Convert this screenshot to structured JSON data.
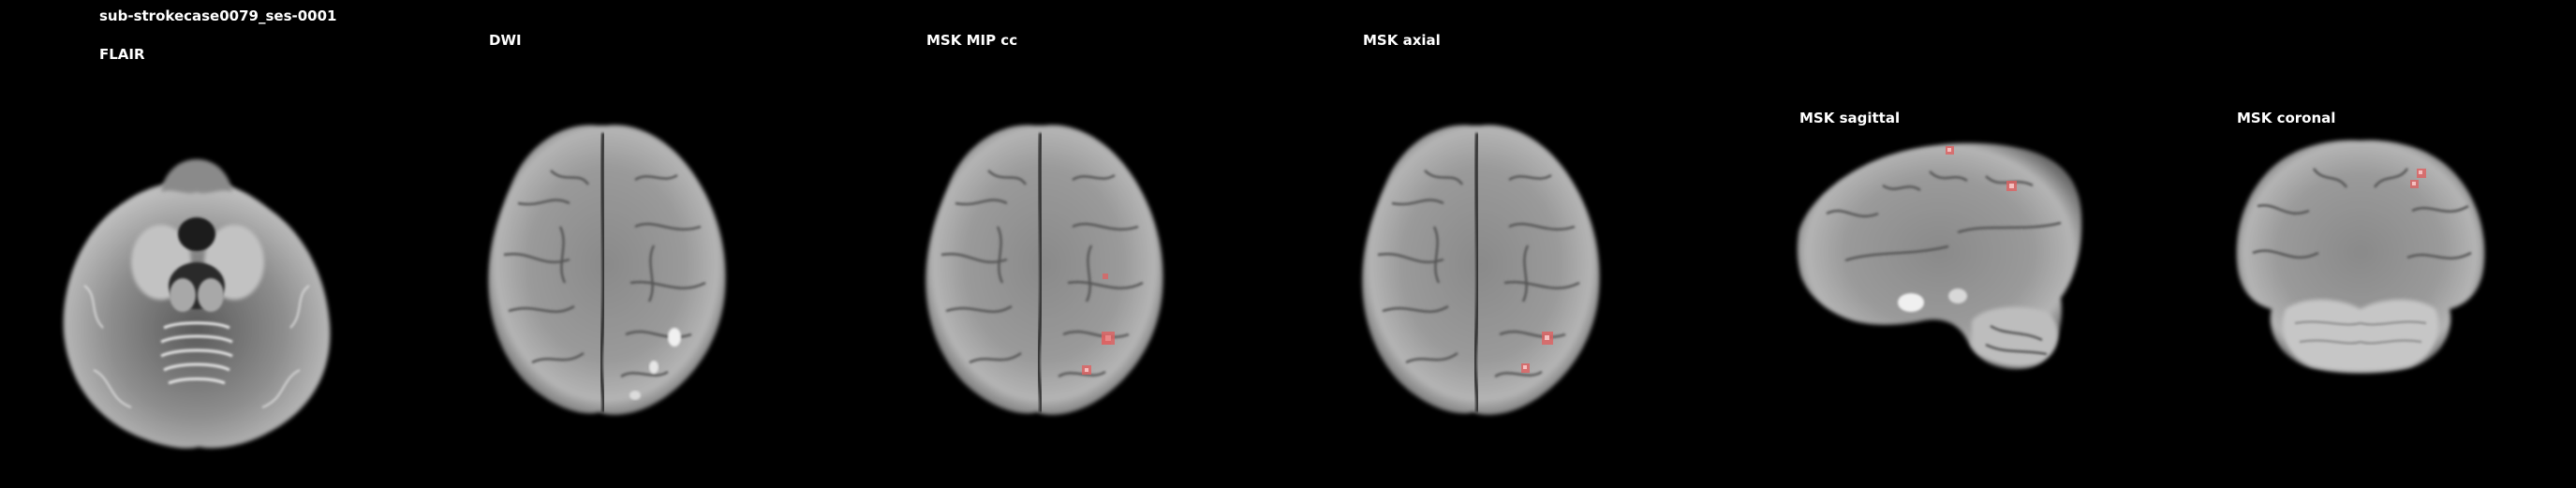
{
  "subject_title": "sub-strokecase0079_ses-0001",
  "panels": [
    {
      "id": "flair",
      "label": "FLAIR"
    },
    {
      "id": "dwi",
      "label": "DWI"
    },
    {
      "id": "msk_mip",
      "label": "MSK MIP cc"
    },
    {
      "id": "msk_axial",
      "label": "MSK axial"
    },
    {
      "id": "msk_sagittal",
      "label": "MSK sagittal"
    },
    {
      "id": "msk_coronal",
      "label": "MSK coronal"
    }
  ],
  "colors": {
    "background": "#000000",
    "text": "#ffffff",
    "lesion_mask": "#e06060"
  }
}
